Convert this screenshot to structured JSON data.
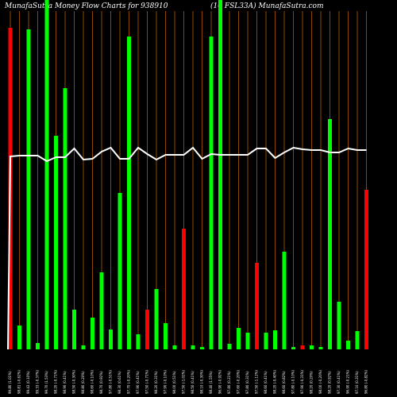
{
  "chart_data": {
    "type": "bar",
    "title": "MunafaSutra  Money Flow  Charts for 938910",
    "subtitle": "(10 FSL33A) MunafaSutra.com",
    "categories": [
      "99.80 (1.01%)",
      "98.81 (-0.62%)",
      "99.43 (0.10%)",
      "99.33 (-0.37%)",
      "99.70 (1.53%)",
      "98.20 (-0.71%)",
      "98.90 (0.41%)",
      "98.50 (-0.30%)",
      "98.80 (0.20%)",
      "98.60 (-0.10%)",
      "98.70 (0.92%)",
      "97.80 (-0.51%)",
      "98.30 (0.61%)",
      "97.70 (-0.20%)",
      "97.90 (0.41%)",
      "97.50 (-0.71%)",
      "98.20 (0.31%)",
      "97.90 (-0.10%)",
      "98.00 (0.51%)",
      "97.50 (-1.02%)",
      "98.50 (0.41%)",
      "98.10 (-0.30%)",
      "98.40 (1.55%)",
      "96.90 (-0.92%)",
      "97.80 (0.21%)",
      "97.60 (-0.20%)",
      "97.80 (0.31%)",
      "97.50 (-1.12%)",
      "98.60 (0.41%)",
      "98.20 (-0.40%)",
      "98.60 (0.82%)",
      "97.80 (-0.10%)",
      "97.90 (-0.31%)",
      "98.20 (0.20%)",
      "98.00 (-0.20%)",
      "98.20 (0.92%)",
      "97.30 (0.41%)",
      "96.90 (-0.21%)",
      "97.10 (0.31%)",
      "96.80 (-0.82%)"
    ],
    "series": [
      {
        "name": "Money Flow",
        "values": [
          405,
          30,
          403,
          8,
          440,
          269,
          329,
          50,
          5,
          40,
          97,
          25,
          197,
          394,
          19,
          50,
          76,
          33,
          5,
          152,
          5,
          3,
          394,
          440,
          7,
          27,
          21,
          109,
          21,
          24,
          123,
          3,
          5,
          5,
          3,
          290,
          60,
          11,
          23,
          201
        ],
        "colors": [
          "#ff0000",
          "#00ff00",
          "#00ff00",
          "#00ff00",
          "#00ff00",
          "#00ff00",
          "#00ff00",
          "#00ff00",
          "#00ff00",
          "#00ff00",
          "#00ff00",
          "#00ff00",
          "#00ff00",
          "#00ff00",
          "#00ff00",
          "#ff0000",
          "#00ff00",
          "#00ff00",
          "#00ff00",
          "#ff0000",
          "#00ff00",
          "#00ff00",
          "#00ff00",
          "#00ff00",
          "#00ff00",
          "#00ff00",
          "#00ff00",
          "#ff0000",
          "#00ff00",
          "#00ff00",
          "#00ff00",
          "#00ff00",
          "#ff0000",
          "#00ff00",
          "#00ff00",
          "#00ff00",
          "#00ff00",
          "#00ff00",
          "#00ff00",
          "#ff0000"
        ]
      },
      {
        "name": "Price",
        "type": "line",
        "color": "#ffffff",
        "values": [
          243,
          244,
          244,
          244,
          237,
          242,
          242,
          253,
          239,
          240,
          249,
          254,
          240,
          240,
          254,
          246,
          239,
          245,
          245,
          245,
          254,
          240,
          246,
          245,
          245,
          245,
          245,
          253,
          253,
          241,
          248,
          254,
          252,
          251,
          251,
          248,
          248,
          253,
          251,
          251
        ]
      }
    ],
    "grid_color": "#b35900",
    "ylim": [
      0,
      440
    ]
  }
}
